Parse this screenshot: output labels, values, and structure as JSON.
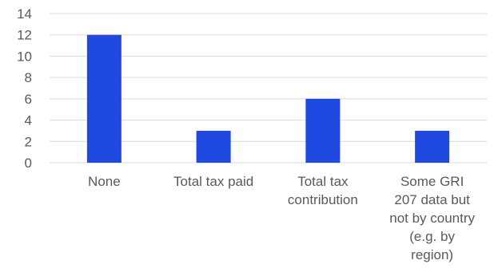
{
  "chart_data": {
    "type": "bar",
    "categories": [
      [
        "None"
      ],
      [
        "Total tax paid"
      ],
      [
        "Total tax",
        "contribution"
      ],
      [
        "Some GRI",
        "207 data but",
        "not by country",
        "(e.g. by",
        "region)"
      ]
    ],
    "values": [
      12,
      3,
      6,
      3
    ],
    "ylim": [
      0,
      14
    ],
    "yticks": [
      0,
      2,
      4,
      6,
      8,
      10,
      12,
      14
    ],
    "grid": true,
    "legend": "none",
    "bar_color": "#1f49e0",
    "title": "",
    "xlabel": "",
    "ylabel": ""
  }
}
